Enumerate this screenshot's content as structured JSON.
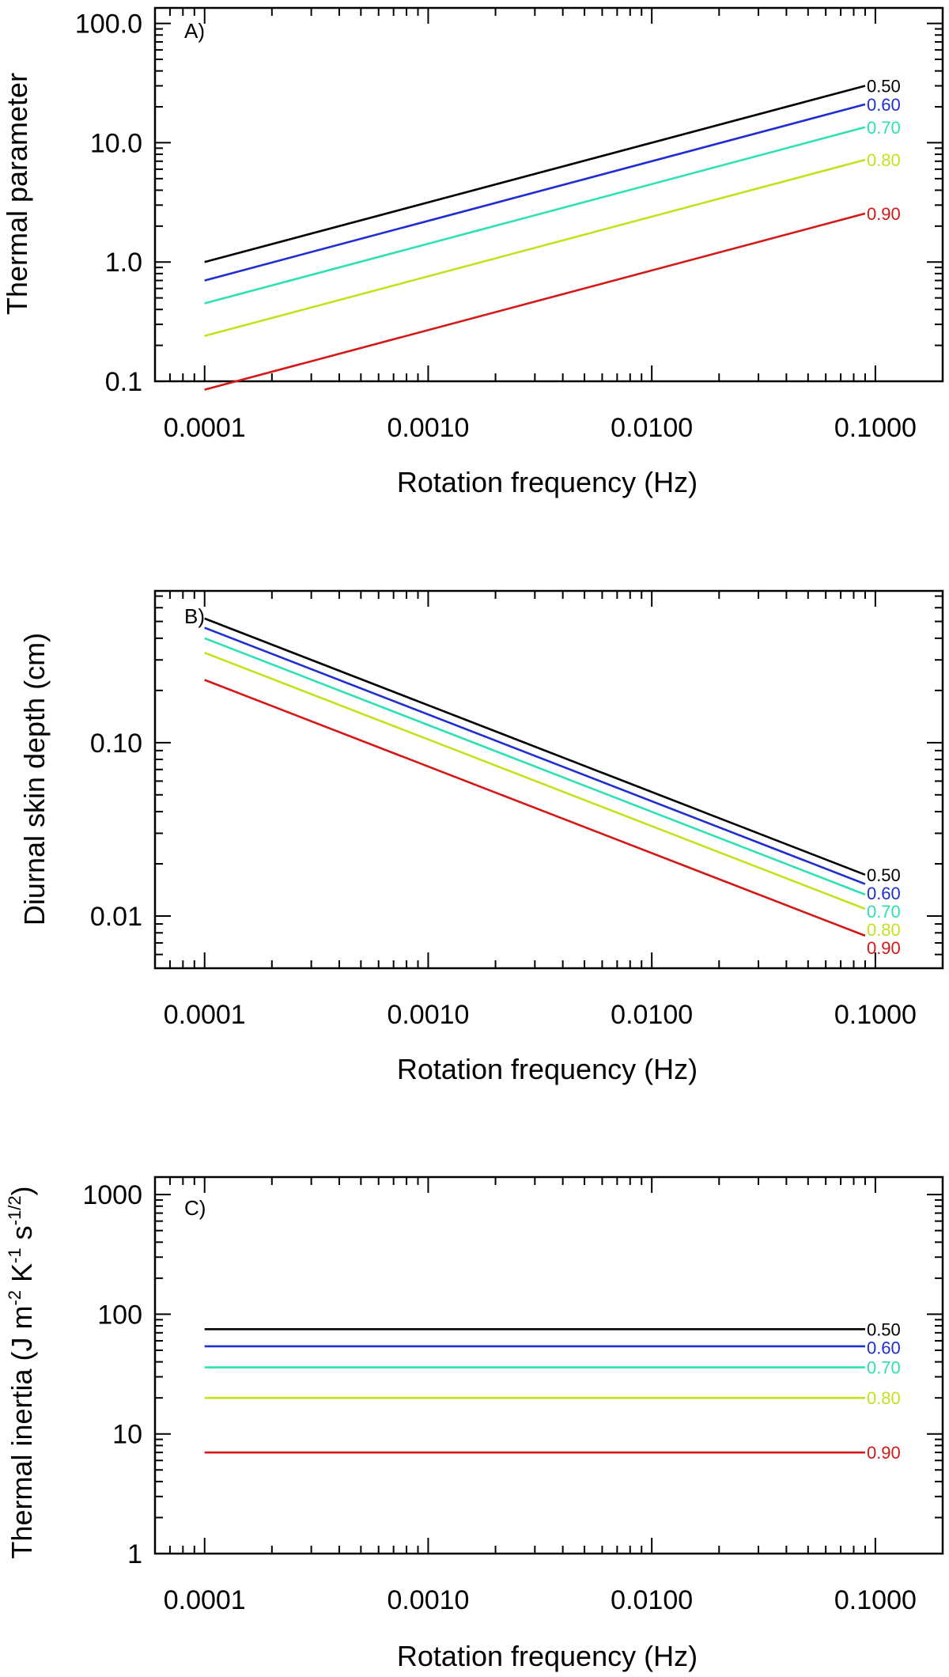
{
  "chart_data": [
    {
      "type": "line",
      "panel": "A)",
      "xlabel": "Rotation frequency (Hz)",
      "ylabel": "Thermal parameter",
      "xscale": "log",
      "yscale": "log",
      "xlim": [
        6e-05,
        0.2
      ],
      "ylim": [
        0.1,
        135
      ],
      "xticks": [
        0.0001,
        0.001,
        0.01,
        0.1
      ],
      "xtick_labels": [
        "0.0001",
        "0.0010",
        "0.0100",
        "0.1000"
      ],
      "yticks": [
        0.1,
        1,
        10,
        100
      ],
      "ytick_labels": [
        "0.1",
        "1.0",
        "10.0",
        "100.0"
      ],
      "x": [
        0.0001,
        0.09
      ],
      "series": [
        {
          "name": "0.50",
          "color": "#000000",
          "values": [
            1.0,
            30.0
          ]
        },
        {
          "name": "0.60",
          "color": "#1e2ed0",
          "values": [
            0.7,
            21.0
          ]
        },
        {
          "name": "0.70",
          "color": "#2ee0b4",
          "values": [
            0.45,
            13.5
          ]
        },
        {
          "name": "0.80",
          "color": "#c6e01c",
          "values": [
            0.24,
            7.2
          ]
        },
        {
          "name": "0.90",
          "color": "#d41818",
          "values": [
            0.085,
            2.55
          ]
        }
      ]
    },
    {
      "type": "line",
      "panel": "B)",
      "xlabel": "Rotation frequency (Hz)",
      "ylabel": "Diurnal skin depth (cm)",
      "xscale": "log",
      "yscale": "log",
      "xlim": [
        6e-05,
        0.2
      ],
      "ylim": [
        0.005,
        0.75
      ],
      "xticks": [
        0.0001,
        0.001,
        0.01,
        0.1
      ],
      "xtick_labels": [
        "0.0001",
        "0.0010",
        "0.0100",
        "0.1000"
      ],
      "yticks": [
        0.01,
        0.1
      ],
      "ytick_labels": [
        "0.01",
        "0.10"
      ],
      "x": [
        0.0001,
        0.09
      ],
      "series": [
        {
          "name": "0.50",
          "color": "#000000",
          "values": [
            0.52,
            0.0173
          ]
        },
        {
          "name": "0.60",
          "color": "#1e2ed0",
          "values": [
            0.46,
            0.0153
          ]
        },
        {
          "name": "0.70",
          "color": "#2ee0b4",
          "values": [
            0.4,
            0.0133
          ]
        },
        {
          "name": "0.80",
          "color": "#c6e01c",
          "values": [
            0.33,
            0.011
          ]
        },
        {
          "name": "0.90",
          "color": "#d41818",
          "values": [
            0.23,
            0.0077
          ]
        }
      ]
    },
    {
      "type": "line",
      "panel": "C)",
      "xlabel": "Rotation frequency (Hz)",
      "ylabel_parts": {
        "prefix": "Thermal inertia (J m",
        "exp1": "-2",
        "mid1": " K",
        "exp2": "-1",
        "mid2": " s",
        "exp3": "-1/2",
        "suffix": ")"
      },
      "xscale": "log",
      "yscale": "log",
      "xlim": [
        6e-05,
        0.2
      ],
      "ylim": [
        1,
        1400
      ],
      "xticks": [
        0.0001,
        0.001,
        0.01,
        0.1
      ],
      "xtick_labels": [
        "0.0001",
        "0.0010",
        "0.0100",
        "0.1000"
      ],
      "yticks": [
        1,
        10,
        100,
        1000
      ],
      "ytick_labels": [
        "1",
        "10",
        "100",
        "1000"
      ],
      "x": [
        0.0001,
        0.09
      ],
      "series": [
        {
          "name": "0.50",
          "color": "#000000",
          "values": [
            75,
            75
          ]
        },
        {
          "name": "0.60",
          "color": "#1e2ed0",
          "values": [
            54,
            54
          ]
        },
        {
          "name": "0.70",
          "color": "#2ee0b4",
          "values": [
            36,
            36
          ]
        },
        {
          "name": "0.80",
          "color": "#c6e01c",
          "values": [
            20,
            20
          ]
        },
        {
          "name": "0.90",
          "color": "#d41818",
          "values": [
            7,
            7
          ]
        }
      ]
    }
  ]
}
